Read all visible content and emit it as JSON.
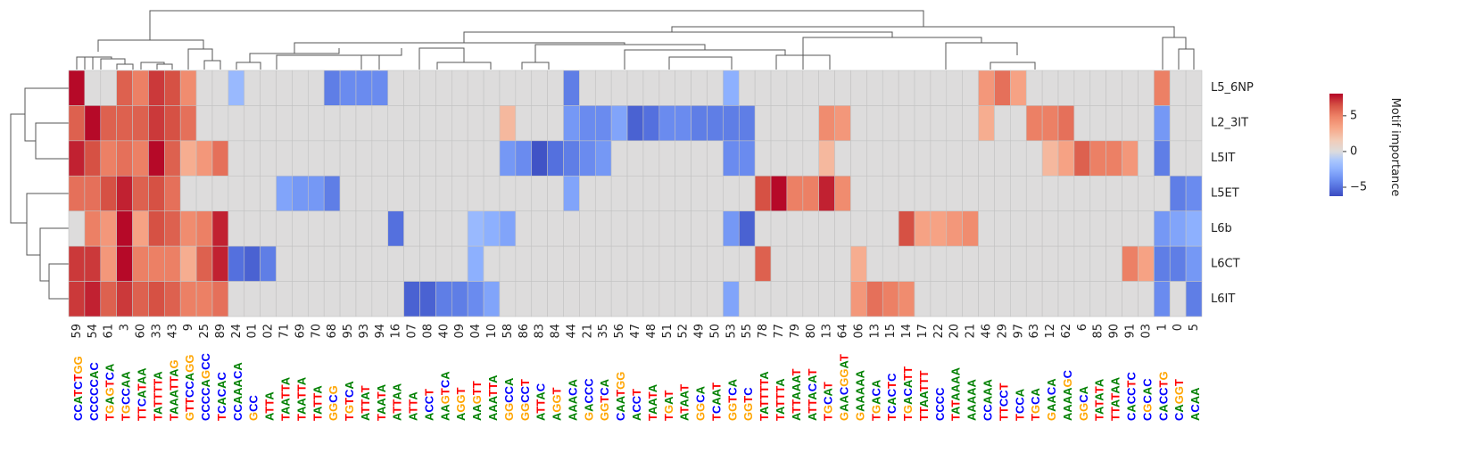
{
  "chart_data": {
    "type": "heatmap",
    "columns": [
      "59",
      "54",
      "61",
      "3",
      "60",
      "33",
      "43",
      "9",
      "25",
      "89",
      "24",
      "01",
      "02",
      "71",
      "69",
      "70",
      "68",
      "95",
      "93",
      "94",
      "16",
      "07",
      "08",
      "40",
      "09",
      "04",
      "10",
      "58",
      "86",
      "83",
      "84",
      "44",
      "21",
      "35",
      "56",
      "47",
      "48",
      "51",
      "52",
      "49",
      "50",
      "53",
      "55",
      "78",
      "77",
      "79",
      "80",
      "13",
      "64",
      "06",
      "13",
      "15",
      "14",
      "17",
      "22",
      "20",
      "21",
      "46",
      "29",
      "97",
      "63",
      "12",
      "62",
      "6",
      "85",
      "90",
      "91",
      "03",
      "1",
      "0",
      "5"
    ],
    "rows": [
      "L5_6NP",
      "L2_3IT",
      "L5IT",
      "L5ET",
      "L6b",
      "L6CT",
      "L6IT"
    ],
    "values": [
      [
        8,
        0,
        0,
        6,
        5,
        7,
        6.5,
        4.5,
        0,
        0,
        -2,
        0,
        0,
        0,
        0,
        0,
        -4.5,
        -4,
        -4,
        -4,
        0,
        0,
        0,
        0,
        0,
        0,
        0,
        0,
        0,
        0,
        0,
        -4.5,
        0,
        0,
        0,
        0,
        0,
        0,
        0,
        0,
        0,
        -2.5,
        0,
        0,
        0,
        0,
        0,
        0,
        0,
        0,
        0,
        0,
        0,
        0,
        0,
        0,
        0,
        4,
        5.5,
        3.5,
        0,
        0,
        0,
        0,
        0,
        0,
        0,
        0,
        5,
        0,
        0
      ],
      [
        6,
        8,
        6,
        6,
        6,
        7,
        6.5,
        5.5,
        0,
        0,
        0,
        0,
        0,
        0,
        0,
        0,
        0,
        0,
        0,
        0,
        0,
        0,
        0,
        0,
        0,
        0,
        0,
        2.5,
        0,
        0,
        0,
        -3.5,
        -4,
        -4,
        -3,
        -5.5,
        -5,
        -4,
        -4,
        -4.5,
        -4.5,
        -4.5,
        -4.5,
        0,
        0,
        0,
        0,
        4.5,
        4,
        0,
        0,
        0,
        0,
        0,
        0,
        0,
        0,
        3,
        0,
        0,
        5,
        5,
        5.5,
        0,
        0,
        0,
        0,
        0,
        -3.5,
        0,
        0
      ],
      [
        7.5,
        6.5,
        5,
        5.5,
        5,
        8,
        6,
        3,
        4,
        5.5,
        0,
        0,
        0,
        0,
        0,
        0,
        0,
        0,
        0,
        0,
        0,
        0,
        0,
        0,
        0,
        0,
        0,
        -3.5,
        -4,
        -6,
        -5,
        -4.5,
        -4,
        -3.5,
        0,
        0,
        0,
        0,
        0,
        0,
        0,
        -4,
        -4,
        0,
        0,
        0,
        0,
        2.5,
        0,
        0,
        0,
        0,
        0,
        0,
        0,
        0,
        0,
        0,
        0,
        0,
        0,
        2.5,
        3.5,
        6,
        5,
        5,
        4,
        0,
        -4.5,
        0,
        0
      ],
      [
        5.5,
        5.5,
        6.5,
        7.5,
        6,
        6.5,
        5.5,
        0,
        0,
        0,
        0,
        0,
        0,
        -3,
        -3.5,
        -3.5,
        -4.5,
        0,
        0,
        0,
        0,
        0,
        0,
        0,
        0,
        0,
        0,
        0,
        0,
        0,
        0,
        -3,
        0,
        0,
        0,
        0,
        0,
        0,
        0,
        0,
        0,
        0,
        0,
        6.5,
        8,
        5,
        5,
        7.5,
        4.5,
        0,
        0,
        0,
        0,
        0,
        0,
        0,
        0,
        0,
        0,
        0,
        0,
        0,
        0,
        0,
        0,
        0,
        0,
        0,
        0,
        -4.5,
        -4
      ],
      [
        0,
        5,
        4,
        8,
        3.5,
        6.5,
        6,
        4.5,
        5,
        7.5,
        0,
        0,
        0,
        0,
        0,
        0,
        0,
        0,
        0,
        0,
        -5,
        0,
        0,
        0,
        0,
        -2,
        -2.5,
        -3,
        0,
        0,
        0,
        0,
        0,
        0,
        0,
        0,
        0,
        0,
        0,
        0,
        0,
        -3.5,
        -5.5,
        0,
        0,
        0,
        0,
        0,
        0,
        0,
        0,
        0,
        6.5,
        3.5,
        3.5,
        4,
        4.5,
        0,
        0,
        0,
        0,
        0,
        0,
        0,
        0,
        0,
        0,
        0,
        -3.5,
        -3,
        -2.5
      ],
      [
        7,
        7,
        4,
        8,
        5,
        5,
        5,
        3,
        6,
        7.5,
        -5,
        -5.5,
        -4.5,
        0,
        0,
        0,
        0,
        0,
        0,
        0,
        0,
        0,
        0,
        0,
        0,
        -2.5,
        0,
        0,
        0,
        0,
        0,
        0,
        0,
        0,
        0,
        0,
        0,
        0,
        0,
        0,
        0,
        0,
        0,
        6,
        0,
        0,
        0,
        0,
        0,
        3,
        0,
        0,
        0,
        0,
        0,
        0,
        0,
        0,
        0,
        0,
        0,
        0,
        0,
        0,
        0,
        0,
        5,
        3.5,
        -4.5,
        -4.5,
        -3.5
      ],
      [
        7,
        7.5,
        6,
        7,
        6,
        6.5,
        6,
        5,
        5,
        5.5,
        0,
        0,
        0,
        0,
        0,
        0,
        0,
        0,
        0,
        0,
        0,
        -5.5,
        -5.5,
        -4.5,
        -4.5,
        -4,
        -3,
        0,
        0,
        0,
        0,
        0,
        0,
        0,
        0,
        0,
        0,
        0,
        0,
        0,
        0,
        -3,
        0,
        0,
        0,
        0,
        0,
        0,
        0,
        4,
        5.5,
        5,
        4.5,
        0,
        0,
        0,
        0,
        0,
        0,
        0,
        0,
        0,
        0,
        0,
        0,
        0,
        0,
        0,
        -4,
        0,
        -4.5
      ]
    ],
    "motif_logos": [
      "CCATCTGG",
      "CCCCCAC",
      "TGAGTCA",
      "TGCCAA",
      "TTCATAA",
      "TATTTTA",
      "TAAATTAG",
      "GTTCCAGG",
      "CCCCAGCC",
      "TCACAC",
      "CCAAACA",
      "GCC",
      "ATTA",
      "TAATTA",
      "TAATTA",
      "TATTA",
      "GGCG",
      "TGTCA",
      "ATTAT",
      "TAATA",
      "ATTAA",
      "ATTA",
      "ACCT",
      "AAGTCA",
      "AGGT",
      "AAGTT",
      "AAATTA",
      "GGCCA",
      "GGCCT",
      "ATTAC",
      "AGGT",
      "AAACA",
      "GACCC",
      "GGTCA",
      "CAATGG",
      "ACCT",
      "TAATA",
      "TGAT",
      "ATAAT",
      "GGCA",
      "TCAAT",
      "GGTCA",
      "GGTC",
      "TATTTTA",
      "TATTTA",
      "ATTAAAT",
      "ATTACAT",
      "TGCAT",
      "GAACGGAT",
      "GAAAAA",
      "TGACA",
      "TCACTC",
      "TGACATT",
      "TTAATTT",
      "CCCC",
      "TATAAAA",
      "AAAAA",
      "CCAAA",
      "TTCCT",
      "TCCA",
      "TGCA",
      "GAACA",
      "AAAAGC",
      "GGCA",
      "TATATA",
      "TTATAA",
      "CACCTC",
      "CGCAC",
      "CACCTG",
      "CAGGT",
      "ACAA"
    ],
    "logo_colors": {
      "A": "#008000",
      "C": "#0000ff",
      "G": "#ffa500",
      "T": "#ff0000"
    },
    "colorbar_label": "Motif importance",
    "clim": [
      -6.25,
      8.1
    ],
    "cbar_ticks": [
      {
        "value": -5,
        "label": "−5"
      },
      0,
      5
    ],
    "cmap": [
      "#3b4cc0",
      "#5470de",
      "#6f92f3",
      "#8db0fe",
      "#aac7fd",
      "#dddcdc",
      "#f2cbb7",
      "#f7a889",
      "#ee8468",
      "#d65244",
      "#b40426"
    ]
  }
}
